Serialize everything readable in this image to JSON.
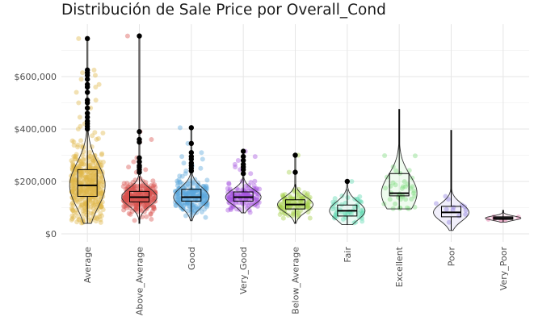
{
  "chart_data": {
    "type": "box",
    "title": "Distribución de Sale Price por Overall_Cond",
    "xlabel": "",
    "ylabel": "",
    "ylim": [
      0,
      760000
    ],
    "y_ticks": [
      0,
      200000,
      400000,
      600000
    ],
    "y_tick_labels": [
      "$0",
      "$200,000",
      "$400,000",
      "$600,000"
    ],
    "grid": true,
    "legend": "none",
    "categories": [
      "Average",
      "Above_Average",
      "Good",
      "Very_Good",
      "Below_Average",
      "Fair",
      "Excellent",
      "Poor",
      "Very_Poor"
    ],
    "colors": [
      "#e0b84a",
      "#d9534f",
      "#5aa8dc",
      "#a855e0",
      "#a5cf4a",
      "#5ed8b0",
      "#7fdc7f",
      "#8f7fe0",
      "#e06aa0"
    ],
    "boxes": [
      {
        "category": "Average",
        "min": 40000,
        "q1": 143000,
        "median": 185000,
        "q3": 245000,
        "max": 390000,
        "n_points": 420,
        "outliers": [
          400000,
          410000,
          420000,
          430000,
          445000,
          460000,
          480000,
          500000,
          510000,
          540000,
          560000,
          570000,
          590000,
          605000,
          615000,
          625000,
          745000
        ]
      },
      {
        "category": "Above_Average",
        "min": 40000,
        "q1": 122000,
        "median": 140000,
        "q3": 162000,
        "max": 220000,
        "n_points": 260,
        "outliers": [
          235000,
          245000,
          255000,
          260000,
          275000,
          290000,
          350000,
          360000,
          390000,
          755000
        ]
      },
      {
        "category": "Good",
        "min": 50000,
        "q1": 125000,
        "median": 140000,
        "q3": 170000,
        "max": 230000,
        "n_points": 200,
        "outliers": [
          240000,
          250000,
          260000,
          270000,
          285000,
          295000,
          310000,
          345000,
          405000
        ]
      },
      {
        "category": "Very_Good",
        "min": 80000,
        "q1": 125000,
        "median": 140000,
        "q3": 160000,
        "max": 215000,
        "n_points": 130,
        "outliers": [
          230000,
          245000,
          255000,
          265000,
          280000,
          295000,
          315000
        ]
      },
      {
        "category": "Below_Average",
        "min": 40000,
        "q1": 95000,
        "median": 112000,
        "q3": 130000,
        "max": 190000,
        "n_points": 100,
        "outliers": [
          235000,
          300000
        ]
      },
      {
        "category": "Fair",
        "min": 35000,
        "q1": 68000,
        "median": 88000,
        "q3": 110000,
        "max": 170000,
        "n_points": 50,
        "outliers": [
          200000
        ]
      },
      {
        "category": "Excellent",
        "min": 95000,
        "q1": 145000,
        "median": 155000,
        "q3": 230000,
        "max": 475000,
        "n_points": 40,
        "outliers": []
      },
      {
        "category": "Poor",
        "min": 13000,
        "q1": 65000,
        "median": 82000,
        "q3": 105000,
        "max": 395000,
        "n_points": 12,
        "outliers": []
      },
      {
        "category": "Very_Poor",
        "min": 45000,
        "q1": 55000,
        "median": 60000,
        "q3": 65000,
        "max": 90000,
        "n_points": 6,
        "outliers": []
      }
    ]
  }
}
